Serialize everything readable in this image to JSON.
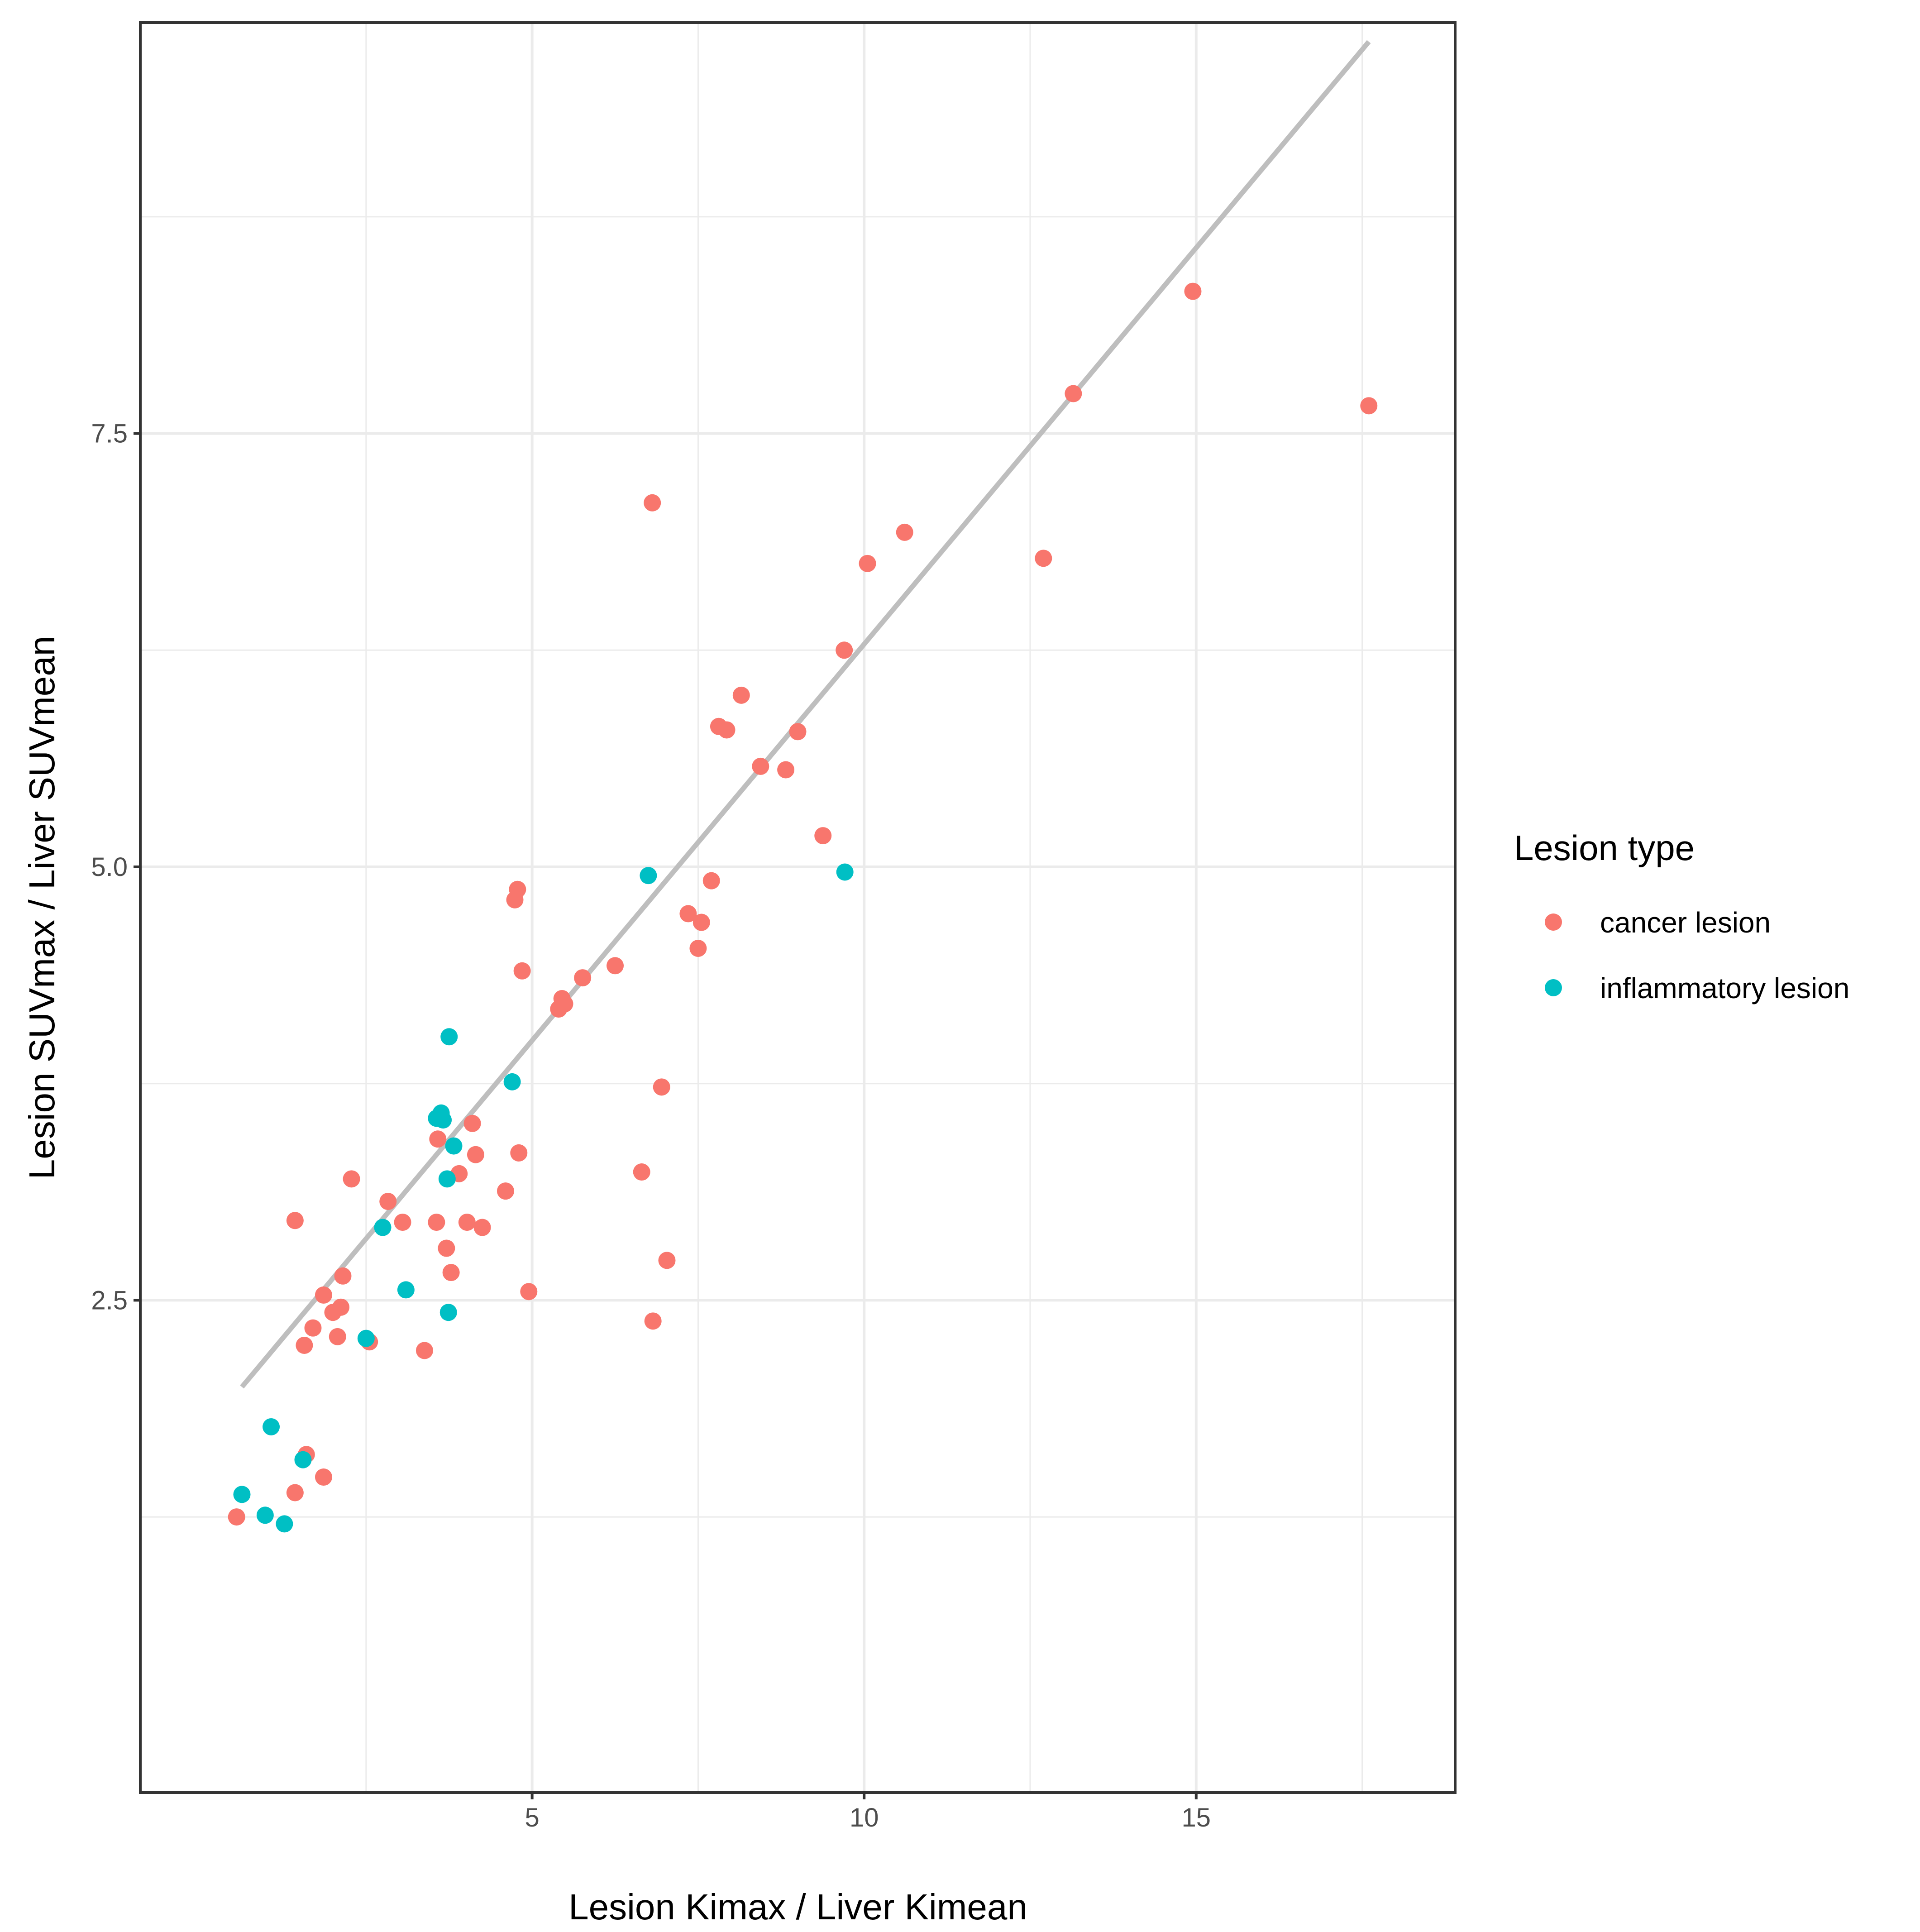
{
  "chart_data": {
    "type": "scatter",
    "title": "",
    "xlabel": "Lesion Kimax / Liver Kimean",
    "ylabel": "Lesion SUVmax / Liver SUVmean",
    "xlim": [
      -0.9,
      18.9
    ],
    "ylim": [
      -0.34,
      9.87
    ],
    "x_ticks": [
      5,
      10,
      15
    ],
    "x_tick_labels": [
      "5",
      "10",
      "15"
    ],
    "x_minor_ticks": [
      2.5,
      7.5,
      12.5,
      17.5
    ],
    "y_ticks": [
      2.5,
      5.0,
      7.5
    ],
    "y_tick_labels": [
      "2.5",
      "5.0",
      "7.5"
    ],
    "y_minor_ticks": [
      1.25,
      3.75,
      6.25,
      8.75
    ],
    "grid": true,
    "legend": {
      "title": "Lesion type",
      "placement": "right",
      "entries": [
        {
          "label": "cancer lesion",
          "color": "#F8766D"
        },
        {
          "label": "inflammatory lesion",
          "color": "#00BFC4"
        }
      ]
    },
    "fit_line": {
      "color": "#BEBEBE",
      "x": [
        0.63,
        17.6
      ],
      "y": [
        2.0,
        9.76
      ]
    },
    "series": [
      {
        "name": "cancer lesion",
        "color": "#F8766D",
        "points": [
          [
            0.55,
            1.25
          ],
          [
            1.43,
            1.39
          ],
          [
            1.6,
            1.61
          ],
          [
            1.86,
            1.48
          ],
          [
            1.43,
            2.96
          ],
          [
            1.57,
            2.24
          ],
          [
            1.7,
            2.34
          ],
          [
            1.86,
            2.53
          ],
          [
            2.0,
            2.43
          ],
          [
            2.07,
            2.29
          ],
          [
            2.15,
            2.64
          ],
          [
            2.28,
            3.2
          ],
          [
            2.12,
            2.46
          ],
          [
            2.83,
            3.07
          ],
          [
            2.55,
            2.26
          ],
          [
            3.05,
            2.95
          ],
          [
            3.38,
            2.21
          ],
          [
            3.56,
            2.95
          ],
          [
            3.58,
            3.43
          ],
          [
            3.71,
            2.8
          ],
          [
            3.78,
            2.66
          ],
          [
            3.9,
            3.23
          ],
          [
            4.02,
            2.95
          ],
          [
            4.1,
            3.52
          ],
          [
            4.15,
            3.34
          ],
          [
            4.25,
            2.92
          ],
          [
            4.6,
            3.13
          ],
          [
            4.74,
            4.81
          ],
          [
            4.78,
            4.87
          ],
          [
            4.8,
            3.35
          ],
          [
            4.85,
            4.4
          ],
          [
            4.95,
            2.55
          ],
          [
            5.4,
            4.18
          ],
          [
            5.45,
            4.24
          ],
          [
            5.49,
            4.21
          ],
          [
            5.76,
            4.36
          ],
          [
            6.25,
            4.43
          ],
          [
            6.65,
            3.24
          ],
          [
            6.82,
            2.38
          ],
          [
            6.95,
            3.73
          ],
          [
            7.03,
            2.73
          ],
          [
            7.35,
            4.73
          ],
          [
            7.5,
            4.53
          ],
          [
            7.55,
            4.68
          ],
          [
            7.7,
            4.92
          ],
          [
            7.81,
            5.81
          ],
          [
            7.93,
            5.79
          ],
          [
            8.15,
            5.99
          ],
          [
            8.44,
            5.58
          ],
          [
            8.82,
            5.56
          ],
          [
            9.0,
            5.78
          ],
          [
            9.38,
            5.18
          ],
          [
            9.7,
            6.25
          ],
          [
            10.05,
            6.75
          ],
          [
            10.61,
            6.93
          ],
          [
            12.7,
            6.78
          ],
          [
            13.15,
            7.73
          ],
          [
            14.95,
            8.32
          ],
          [
            17.6,
            7.66
          ],
          [
            6.81,
            7.1
          ]
        ]
      },
      {
        "name": "inflammatory lesion",
        "color": "#00BFC4",
        "points": [
          [
            0.63,
            1.38
          ],
          [
            0.98,
            1.26
          ],
          [
            1.07,
            1.77
          ],
          [
            1.27,
            1.21
          ],
          [
            1.55,
            1.58
          ],
          [
            2.5,
            2.28
          ],
          [
            2.75,
            2.92
          ],
          [
            3.1,
            2.56
          ],
          [
            3.56,
            3.55
          ],
          [
            3.63,
            3.58
          ],
          [
            3.66,
            3.54
          ],
          [
            3.72,
            3.2
          ],
          [
            3.74,
            2.43
          ],
          [
            3.75,
            4.02
          ],
          [
            3.82,
            3.39
          ],
          [
            4.7,
            3.76
          ],
          [
            6.75,
            4.95
          ],
          [
            9.71,
            4.97
          ]
        ]
      }
    ]
  }
}
